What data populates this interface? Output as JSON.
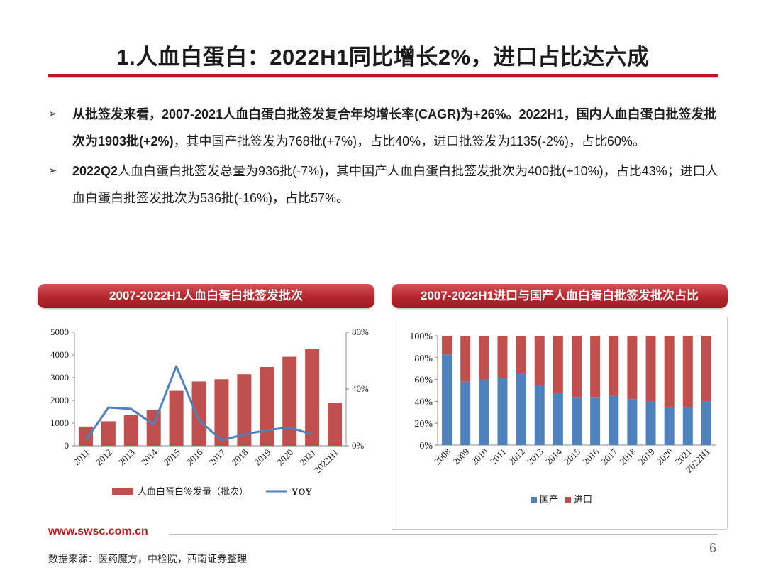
{
  "slide": {
    "title": "1.人血白蛋白：2022H1同比增长2%，进口占比达六成",
    "bullet1": {
      "bold": "从批签发来看，2007-2021人血白蛋白批签发复合年均增长率(CAGR)为+26%。2022H1，国内人血白蛋白批签发批次为1903批(+2%)",
      "normal": "，其中国产批签发为768批(+7%)，占比40%，进口批签发为1135(-2%)，占比60%。"
    },
    "bullet2": {
      "bold": "2022Q2",
      "normal": "人血白蛋白批签发总量为936批(-7%)，其中国产人血白蛋白批签发批次为400批(+10%)，占比43%；进口人血白蛋白批签发批次为536批(-16%)，占比57%。"
    },
    "footer_url": "www.swsc.com.cn",
    "page_number": "6",
    "source": "数据来源：医药魔方，中检院，西南证券整理"
  },
  "colors": {
    "accent": "#c0161c",
    "bar_red": "#c0504d",
    "line_blue": "#4f81bd"
  },
  "chart_data": [
    {
      "type": "bar",
      "title": "2007-2022H1人血白蛋白批签发批次",
      "categories": [
        "2011",
        "2012",
        "2013",
        "2014",
        "2015",
        "2016",
        "2017",
        "2018",
        "2019",
        "2020",
        "2021",
        "2022H1"
      ],
      "series": [
        {
          "name": "人血白蛋白签发量（批次）",
          "kind": "bar",
          "axis": "left",
          "values": [
            850,
            1080,
            1350,
            1570,
            2420,
            2830,
            2930,
            3150,
            3470,
            3920,
            4250,
            1900
          ]
        },
        {
          "name": "YOY",
          "kind": "line",
          "axis": "right",
          "values": [
            0.04,
            0.27,
            0.26,
            0.15,
            0.56,
            0.18,
            0.04,
            0.08,
            0.11,
            0.13,
            0.08,
            null
          ]
        }
      ],
      "ylim_left": [
        0,
        5000
      ],
      "yticks_left": [
        "0",
        "1000",
        "2000",
        "3000",
        "4000",
        "5000"
      ],
      "ylim_right": [
        0,
        0.8
      ],
      "yticks_right": [
        "0%",
        "40%",
        "80%"
      ],
      "legend_position": "bottom",
      "grid": false
    },
    {
      "type": "bar",
      "stacked": true,
      "title": "2007-2022H1进口与国产人血白蛋白批签发批次占比",
      "categories": [
        "2008",
        "2009",
        "2010",
        "2011",
        "2012",
        "2013",
        "2014",
        "2015",
        "2016",
        "2017",
        "2018",
        "2019",
        "2020",
        "2021",
        "2022H1"
      ],
      "series": [
        {
          "name": "国产",
          "values": [
            0.83,
            0.58,
            0.6,
            0.61,
            0.66,
            0.55,
            0.48,
            0.44,
            0.44,
            0.45,
            0.42,
            0.4,
            0.35,
            0.35,
            0.4
          ]
        },
        {
          "name": "进口",
          "values": [
            0.17,
            0.42,
            0.4,
            0.39,
            0.34,
            0.45,
            0.52,
            0.56,
            0.56,
            0.55,
            0.58,
            0.6,
            0.65,
            0.65,
            0.6
          ]
        }
      ],
      "ylim": [
        0,
        1
      ],
      "yticks": [
        "0%",
        "20%",
        "40%",
        "60%",
        "80%",
        "100%"
      ],
      "legend_position": "bottom",
      "grid": false
    }
  ]
}
